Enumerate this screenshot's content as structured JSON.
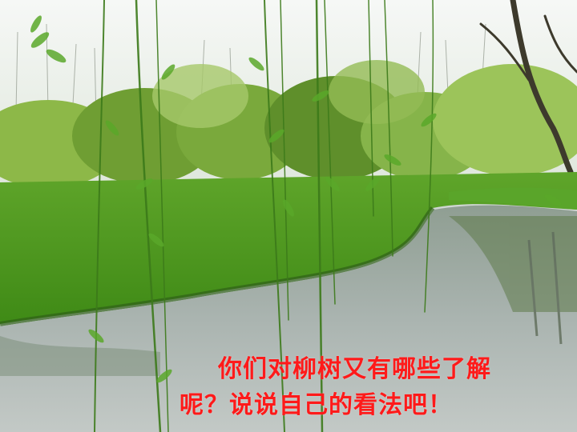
{
  "scene": {
    "description_icon": "willow-lake-photo"
  },
  "caption": {
    "line1": "你们对柳树又有哪些了解",
    "line2": "呢？说说自己的看法吧！",
    "color": "#ff1a1a"
  },
  "palette": {
    "sky": "#eef2ee",
    "far_trees": "#7faa3a",
    "lawn": "#4f9a1e",
    "water": "#9aa8a3",
    "willow": "#3f7f1c"
  }
}
